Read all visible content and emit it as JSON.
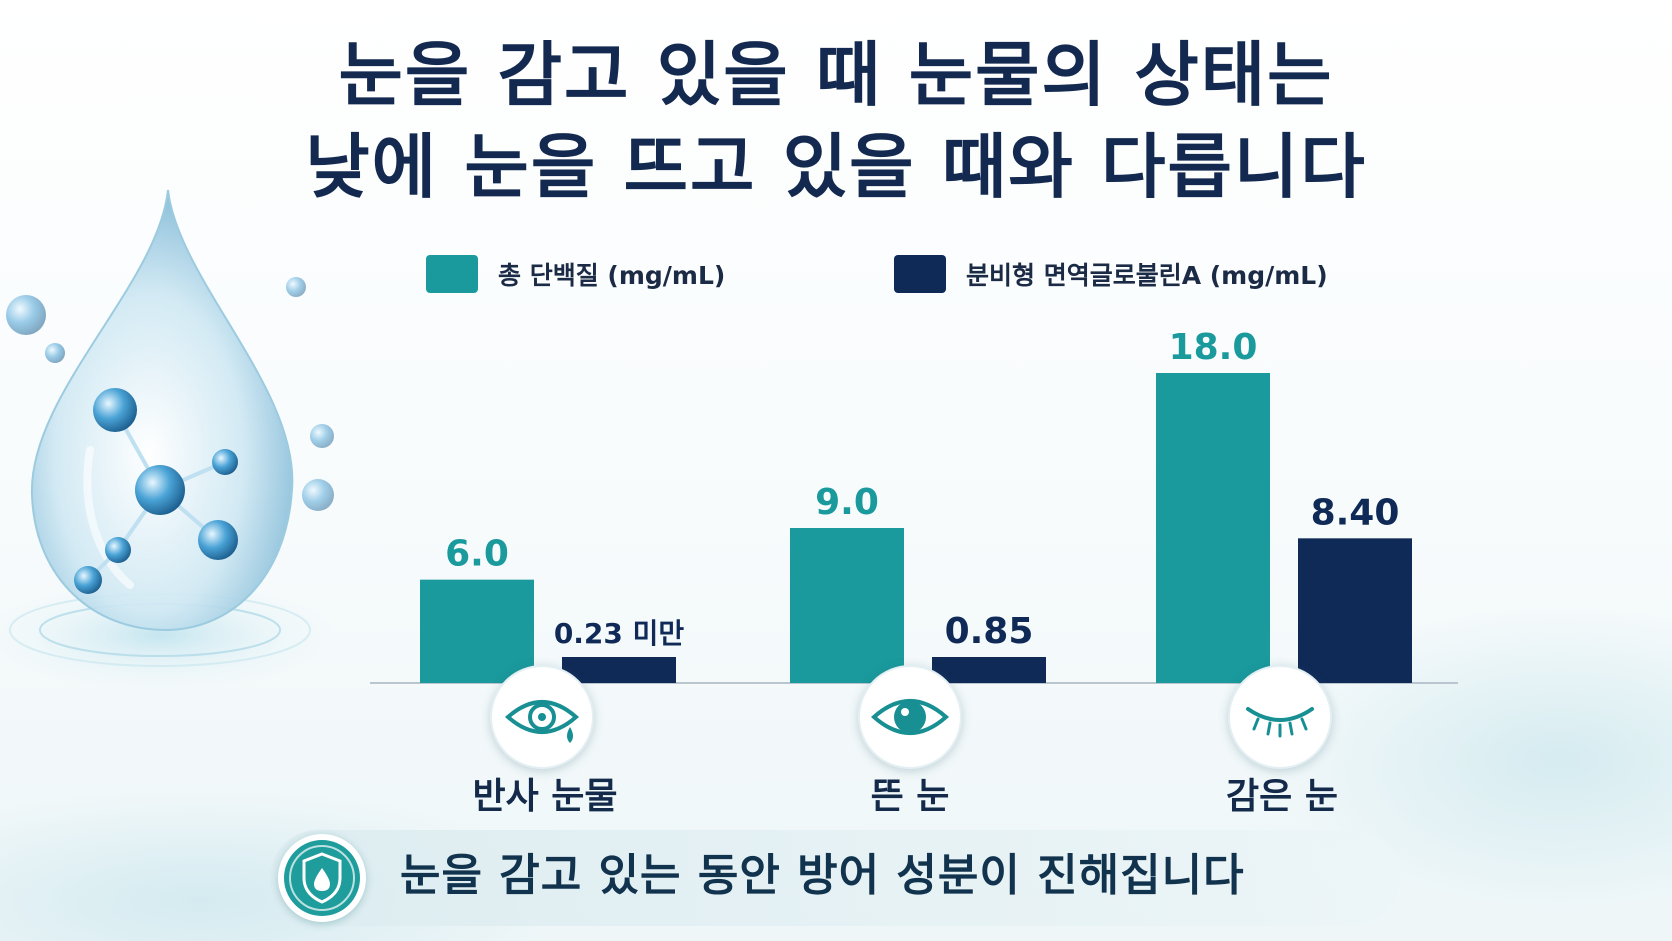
{
  "title": {
    "line1": "눈을 감고 있을 때 눈물의 상태는",
    "line2": "낮에 눈을 뜨고 있을 때와 다릅니다"
  },
  "legend": [
    {
      "label": "총 단백질 (mg/mL)",
      "color": "#1a9a9d"
    },
    {
      "label": "분비형 면역글로불린A (mg/mL)",
      "color": "#102a57"
    }
  ],
  "banner": {
    "text": "눈을 감고 있는 동안 방어 성분이 진해집니다",
    "icon": "shield-drop-icon"
  },
  "chart_data": {
    "type": "bar",
    "categories": [
      "반사 눈물",
      "뜬 눈",
      "감은 눈"
    ],
    "category_icons": [
      "teary-eye-icon",
      "open-eye-icon",
      "closed-eye-icon"
    ],
    "series": [
      {
        "name": "총 단백질 (mg/mL)",
        "values": [
          6.0,
          9.0,
          18.0
        ],
        "labels": [
          "6.0",
          "9.0",
          "18.0"
        ],
        "color": "#1a9a9d",
        "label_color": "#1a9a9d"
      },
      {
        "name": "분비형 면역글로불린A (mg/mL)",
        "values": [
          0.23,
          0.85,
          8.4
        ],
        "labels": [
          "0.23 미만",
          "0.85",
          "8.40"
        ],
        "color": "#102a57",
        "label_color": "#102a57"
      }
    ],
    "ylim": [
      0,
      20
    ],
    "grid": false,
    "legend_position": "top"
  }
}
